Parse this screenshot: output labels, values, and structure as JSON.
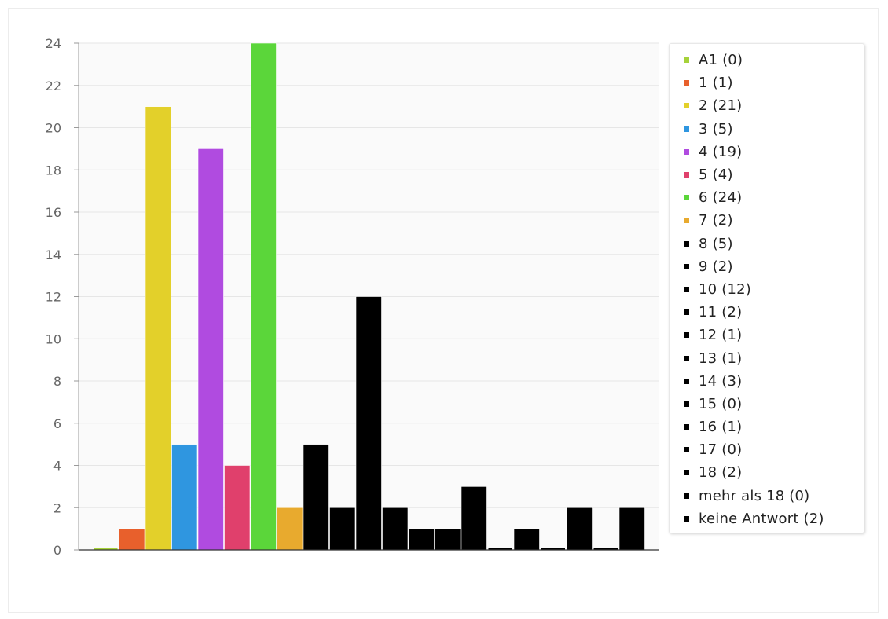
{
  "chart_data": {
    "type": "bar",
    "title": "",
    "xlabel": "",
    "ylabel": "",
    "ylim": [
      0,
      24
    ],
    "yticks": [
      "0",
      "2",
      "4",
      "6",
      "8",
      "10",
      "12",
      "14",
      "16",
      "18",
      "20",
      "22",
      "24"
    ],
    "grid": true,
    "legend_position": "right",
    "categories": [
      "A1",
      "1",
      "2",
      "3",
      "4",
      "5",
      "6",
      "7",
      "8",
      "9",
      "10",
      "11",
      "12",
      "13",
      "14",
      "15",
      "16",
      "17",
      "18",
      "mehr als 18",
      "keine Antwort"
    ],
    "values": [
      0,
      1,
      21,
      5,
      19,
      4,
      24,
      2,
      5,
      2,
      12,
      2,
      1,
      1,
      3,
      0,
      1,
      0,
      2,
      0,
      2
    ],
    "colors": [
      "#a6d23a",
      "#e8602c",
      "#e3d02a",
      "#2f96e0",
      "#b04be0",
      "#e0406c",
      "#5bd63a",
      "#e8aa2e",
      "#000000",
      "#000000",
      "#000000",
      "#000000",
      "#000000",
      "#000000",
      "#000000",
      "#000000",
      "#000000",
      "#000000",
      "#000000",
      "#000000",
      "#000000"
    ],
    "legend": [
      "A1 (0)",
      "1 (1)",
      "2 (21)",
      "3 (5)",
      "4 (19)",
      "5 (4)",
      "6 (24)",
      "7 (2)",
      "8 (5)",
      "9 (2)",
      "10 (12)",
      "11 (2)",
      "12 (1)",
      "13 (1)",
      "14 (3)",
      "15 (0)",
      "16 (1)",
      "17 (0)",
      "18 (2)",
      "mehr als 18 (0)",
      "keine Antwort (2)"
    ]
  }
}
